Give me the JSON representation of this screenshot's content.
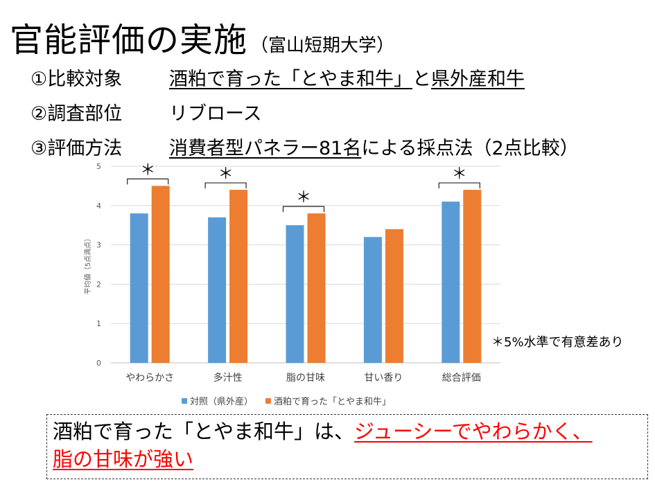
{
  "title": {
    "main": "官能評価の実施",
    "sub": "（富山短期大学）"
  },
  "info": [
    {
      "label": "①比較対象",
      "parts": [
        "酒粕で育った「とやま和牛」",
        "と",
        "県外産和牛"
      ]
    },
    {
      "label": "②調査部位",
      "parts": [
        "リブロース"
      ]
    },
    {
      "label": "③評価方法",
      "parts": [
        "消費者型パネラー81名",
        "による採点法（2点比較）"
      ]
    }
  ],
  "significance_note": "＊5%水準で有意差あり",
  "conclusion": {
    "prefix": "酒粕で育った「とやま和牛」は、",
    "highlight1": "ジューシーでやわらかく、",
    "highlight2": "脂の甘味が強い"
  },
  "chart_data": {
    "type": "bar",
    "categories": [
      "やわらかさ",
      "多汁性",
      "脂の甘味",
      "甘い香り",
      "総合評価"
    ],
    "series": [
      {
        "name": "対照（県外産）",
        "color": "#5b9bd5",
        "values": [
          3.8,
          3.7,
          3.5,
          3.2,
          4.1
        ]
      },
      {
        "name": "酒粕で育った「とやま和牛」",
        "color": "#ed7d31",
        "values": [
          4.5,
          4.4,
          3.8,
          3.4,
          4.4
        ]
      }
    ],
    "significant": [
      true,
      true,
      true,
      false,
      true
    ],
    "significance_marker": "＊",
    "ylabel": "平均値（5点満点）",
    "ylim": [
      0,
      5
    ],
    "yticks": [
      "0",
      "1",
      "2",
      "3",
      "4",
      "5"
    ],
    "grid": true,
    "legend_position": "bottom"
  }
}
